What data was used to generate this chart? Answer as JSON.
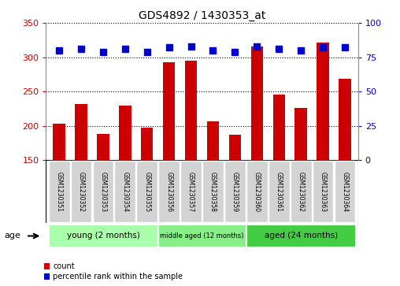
{
  "title": "GDS4892 / 1430353_at",
  "samples": [
    "GSM1230351",
    "GSM1230352",
    "GSM1230353",
    "GSM1230354",
    "GSM1230355",
    "GSM1230356",
    "GSM1230357",
    "GSM1230358",
    "GSM1230359",
    "GSM1230360",
    "GSM1230361",
    "GSM1230362",
    "GSM1230363",
    "GSM1230364"
  ],
  "counts": [
    203,
    232,
    188,
    230,
    197,
    293,
    295,
    207,
    187,
    316,
    246,
    226,
    321,
    269
  ],
  "percentiles": [
    80,
    81,
    79,
    81,
    79,
    82,
    83,
    80,
    79,
    83,
    81,
    80,
    82,
    82
  ],
  "ylim_left": [
    150,
    350
  ],
  "ylim_right": [
    0,
    100
  ],
  "yticks_left": [
    150,
    200,
    250,
    300,
    350
  ],
  "yticks_right": [
    0,
    25,
    50,
    75,
    100
  ],
  "bar_color": "#cc0000",
  "dot_color": "#0000cc",
  "groups": [
    {
      "label": "young (2 months)",
      "start": 0,
      "end": 5,
      "color": "#aaffaa"
    },
    {
      "label": "middle aged (12 months)",
      "start": 5,
      "end": 9,
      "color": "#88ee88"
    },
    {
      "label": "aged (24 months)",
      "start": 9,
      "end": 14,
      "color": "#44cc44"
    }
  ],
  "age_label": "age",
  "legend_count_label": "count",
  "legend_pct_label": "percentile rank within the sample",
  "background_color": "#ffffff",
  "plot_bg_color": "#ffffff",
  "tick_color_left": "#cc0000",
  "tick_color_right": "#0000cc",
  "sample_bg_color": "#d3d3d3"
}
